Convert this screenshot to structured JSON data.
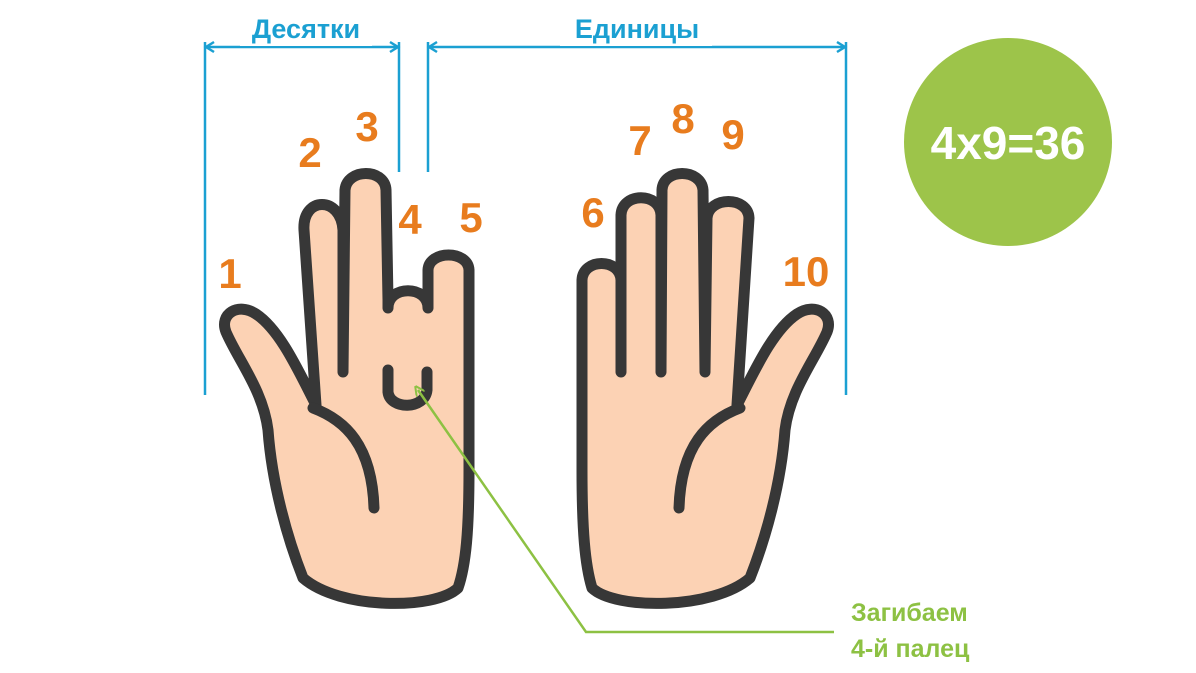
{
  "labels": {
    "tens": "Десятки",
    "units": "Единицы"
  },
  "fingers": [
    "1",
    "2",
    "3",
    "4",
    "5",
    "6",
    "7",
    "8",
    "9",
    "10"
  ],
  "equation": "4x9=36",
  "note": {
    "line1": "Загибаем",
    "line2": "4-й палец"
  },
  "colors": {
    "bracket": "#1ba0d2",
    "finger_number": "#e87c1e",
    "accent_green": "#9dc44a",
    "skin": "#fcd2b4",
    "outline": "#373737"
  }
}
